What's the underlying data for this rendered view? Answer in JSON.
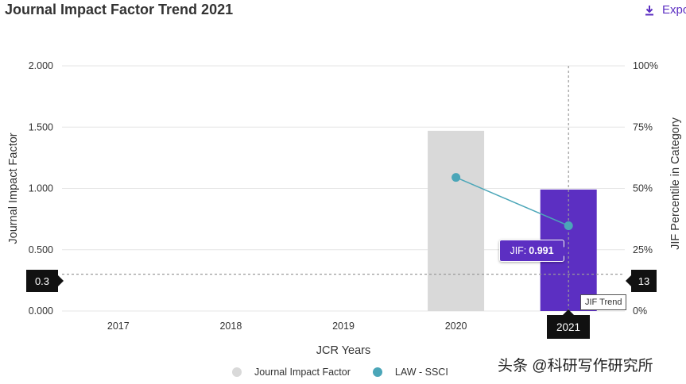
{
  "header": {
    "title": "Journal Impact Factor Trend 2021",
    "export_label": "Expo"
  },
  "chart_data": {
    "type": "bar",
    "title": "Journal Impact Factor Trend 2021",
    "xlabel": "JCR Years",
    "ylabel": "Journal Impact Factor",
    "y2label": "JIF Percentile in Category",
    "categories": [
      "2017",
      "2018",
      "2019",
      "2020",
      "2021"
    ],
    "ylim": [
      0,
      2
    ],
    "y_ticks": [
      "0.000",
      "0.500",
      "1.000",
      "1.500",
      "2.000"
    ],
    "y2lim": [
      0,
      100
    ],
    "y2_ticks": [
      "0%",
      "25%",
      "50%",
      "75%",
      "100%"
    ],
    "series": [
      {
        "name": "Journal Impact Factor",
        "kind": "bar",
        "values": [
          null,
          null,
          null,
          1.47,
          0.991
        ],
        "colors": [
          "#d9d9d9",
          "#d9d9d9",
          "#d9d9d9",
          "#d9d9d9",
          "#5c2fc2"
        ]
      },
      {
        "name": "LAW - SSCI",
        "kind": "line",
        "axis": "right",
        "values": [
          null,
          null,
          null,
          54.5,
          34.8
        ],
        "color": "#4ba6b8"
      }
    ],
    "crosshair": {
      "left_value": "0.3",
      "right_value": "13",
      "category": "2021"
    },
    "tooltip": {
      "label": "JIF:",
      "value": "0.991"
    },
    "trend_label": "JIF Trend",
    "legend_position": "bottom-center"
  },
  "legend": [
    {
      "label": "Journal Impact Factor",
      "color": "#d9d9d9"
    },
    {
      "label": "LAW - SSCI",
      "color": "#4ba6b8"
    }
  ],
  "watermark": "头条 @科研写作研究所"
}
